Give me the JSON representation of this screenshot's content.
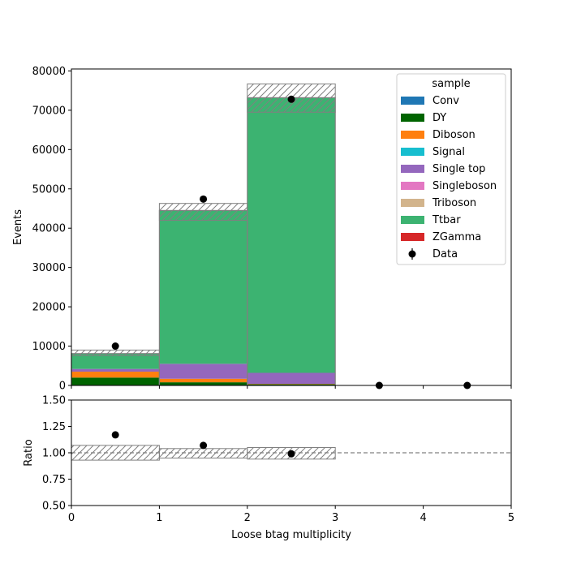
{
  "chart_data": [
    {
      "type": "bar",
      "stacked": true,
      "xlabel": "Loose btag multiplicity",
      "ylabel": "Events",
      "xlim": [
        0,
        5
      ],
      "ylim": [
        0,
        80500
      ],
      "x_ticks": [
        0,
        1,
        2,
        3,
        4,
        5
      ],
      "y_ticks": [
        0,
        10000,
        20000,
        30000,
        40000,
        50000,
        60000,
        70000,
        80000
      ],
      "bin_edges": [
        0,
        1,
        2,
        3,
        4,
        5
      ],
      "legend_title": "sample",
      "legend_position": "top-right",
      "series": [
        {
          "name": "Conv",
          "color": "#1f77b4",
          "values": [
            0,
            0,
            0,
            0,
            0
          ]
        },
        {
          "name": "DY",
          "color": "#006400",
          "values": [
            2000,
            800,
            300,
            0,
            0
          ]
        },
        {
          "name": "Diboson",
          "color": "#ff7f0e",
          "values": [
            1500,
            900,
            100,
            0,
            0
          ]
        },
        {
          "name": "Signal",
          "color": "#17becf",
          "values": [
            0,
            0,
            0,
            0,
            0
          ]
        },
        {
          "name": "Single top",
          "color": "#9467bd",
          "values": [
            700,
            3800,
            2800,
            0,
            0
          ]
        },
        {
          "name": "Singleboson",
          "color": "#e377c2",
          "values": [
            0,
            0,
            0,
            0,
            0
          ]
        },
        {
          "name": "Triboson",
          "color": "#d2b48c",
          "values": [
            0,
            0,
            0,
            0,
            0
          ]
        },
        {
          "name": "Ttbar",
          "color": "#3cb371",
          "values": [
            3900,
            39000,
            70000,
            0,
            0
          ]
        },
        {
          "name": "ZGamma",
          "color": "#d62728",
          "values": [
            0,
            0,
            0,
            0,
            0
          ]
        }
      ],
      "uncertainty_band": [
        {
          "low": 7600,
          "high": 9000
        },
        {
          "low": 42000,
          "high": 46300
        },
        {
          "low": 69500,
          "high": 76700
        },
        {
          "low": 0,
          "high": 0
        },
        {
          "low": 0,
          "high": 0
        }
      ],
      "data": {
        "name": "Data",
        "x": [
          0.5,
          1.5,
          2.5,
          3.5,
          4.5
        ],
        "y": [
          10000,
          47400,
          72800,
          0,
          0
        ]
      }
    },
    {
      "type": "scatter",
      "xlabel": "Loose btag multiplicity",
      "ylabel": "Ratio",
      "xlim": [
        0,
        5
      ],
      "ylim": [
        0.5,
        1.5
      ],
      "x_ticks": [
        0,
        1,
        2,
        3,
        4,
        5
      ],
      "y_ticks": [
        0.5,
        0.75,
        1.0,
        1.25,
        1.5
      ],
      "y_tick_labels": [
        "0.50",
        "0.75",
        "1.00",
        "1.25",
        "1.50"
      ],
      "reference_line": 1.0,
      "uncertainty_band": [
        {
          "low": 0.93,
          "high": 1.07
        },
        {
          "low": 0.95,
          "high": 1.04
        },
        {
          "low": 0.94,
          "high": 1.05
        },
        {
          "low": 1.0,
          "high": 1.0
        },
        {
          "low": 1.0,
          "high": 1.0
        }
      ],
      "points": {
        "x": [
          0.5,
          1.5,
          2.5
        ],
        "y": [
          1.17,
          1.07,
          0.99
        ]
      }
    }
  ]
}
